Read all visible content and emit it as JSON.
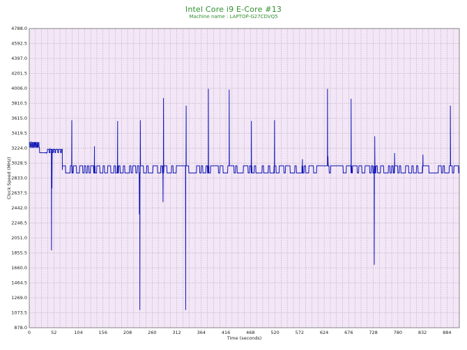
{
  "chart_data": {
    "type": "line",
    "title": "Intel Core i9 E-Core #13",
    "subtitle": "Machine name : LAPTOP-G27CDVQ5",
    "xlabel": "Time (seconds)",
    "ylabel": "Clock Speed (MHz)",
    "xlim": [
      0,
      910
    ],
    "ylim": [
      878,
      4788
    ],
    "xticks": [
      0,
      52,
      104,
      156,
      208,
      260,
      312,
      364,
      416,
      468,
      520,
      572,
      624,
      676,
      728,
      780,
      832,
      884
    ],
    "yticks": [
      878.0,
      1073.5,
      1269.0,
      1464.5,
      1660.0,
      1855.5,
      2051.0,
      2246.5,
      2442.0,
      2637.5,
      2833.0,
      3028.5,
      3224.0,
      3419.5,
      3615.0,
      3810.5,
      4006.0,
      4201.5,
      4397.0,
      4592.5,
      4788.0
    ],
    "grid": true,
    "colors": {
      "plot_background": "#f3e6f6",
      "grid": "#9a8fa0",
      "line": "#0b14b5",
      "title": "#2f8f2f"
    },
    "series": [
      {
        "baseline_high": 2994,
        "baseline_low": 2900,
        "initial_level": 3260,
        "initial_end": 22,
        "plateau_level": 3185,
        "plateau_end": 38,
        "fluctuation_level": 3165,
        "fluctuation_end": 40,
        "mid_level": 3210,
        "mid_end": 70,
        "points": [
          [
            0,
            3260
          ],
          [
            4,
            3305
          ],
          [
            8,
            3230
          ],
          [
            12,
            3300
          ],
          [
            16,
            3240
          ],
          [
            20,
            3295
          ],
          [
            22,
            3160
          ],
          [
            30,
            3165
          ],
          [
            36,
            3160
          ],
          [
            40,
            3210
          ],
          [
            44,
            3215
          ],
          [
            46,
            3210
          ],
          [
            51,
            3165
          ],
          [
            47,
            1890
          ],
          [
            48,
            2700
          ],
          [
            52,
            3210
          ],
          [
            66,
            3210
          ],
          [
            70,
            2940
          ],
          [
            89,
            2994
          ],
          [
            90,
            3590
          ],
          [
            91,
            2994
          ],
          [
            137,
            2994
          ],
          [
            138,
            3250
          ],
          [
            139,
            2994
          ],
          [
            186,
            2994
          ],
          [
            187,
            3580
          ],
          [
            188,
            2994
          ],
          [
            232,
            2994
          ],
          [
            233,
            2360
          ],
          [
            234,
            1110
          ],
          [
            235,
            3590
          ],
          [
            236,
            2994
          ],
          [
            282,
            2994
          ],
          [
            283,
            2520
          ],
          [
            284,
            3880
          ],
          [
            285,
            2994
          ],
          [
            330,
            2994
          ],
          [
            331,
            1110
          ],
          [
            332,
            3780
          ],
          [
            333,
            2994
          ],
          [
            378,
            2994
          ],
          [
            379,
            4000
          ],
          [
            380,
            2994
          ],
          [
            422,
            2994
          ],
          [
            423,
            3990
          ],
          [
            424,
            2994
          ],
          [
            469,
            2994
          ],
          [
            470,
            3580
          ],
          [
            471,
            2994
          ],
          [
            518,
            2994
          ],
          [
            519,
            3590
          ],
          [
            520,
            2994
          ],
          [
            577,
            2994
          ],
          [
            578,
            3080
          ],
          [
            579,
            2994
          ],
          [
            630,
            2994
          ],
          [
            631,
            4000
          ],
          [
            632,
            3120
          ],
          [
            633,
            2994
          ],
          [
            680,
            2994
          ],
          [
            681,
            3870
          ],
          [
            682,
            2994
          ],
          [
            729,
            2994
          ],
          [
            730,
            1700
          ],
          [
            731,
            3380
          ],
          [
            732,
            2994
          ],
          [
            772,
            2994
          ],
          [
            773,
            3160
          ],
          [
            774,
            2994
          ],
          [
            832,
            2994
          ],
          [
            833,
            3140
          ],
          [
            834,
            2994
          ],
          [
            890,
            2994
          ],
          [
            891,
            3780
          ],
          [
            892,
            2994
          ],
          [
            910,
            2994
          ]
        ]
      }
    ]
  }
}
